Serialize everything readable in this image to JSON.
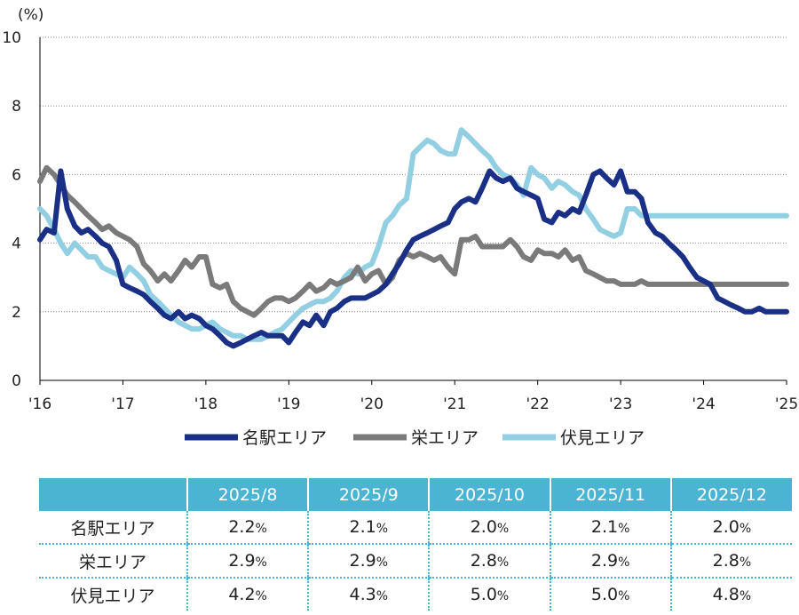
{
  "chart_data": {
    "type": "line",
    "y_unit_label": "(%)",
    "ylim": [
      0,
      10
    ],
    "yticks": [
      "0",
      "2",
      "4",
      "6",
      "8",
      "10"
    ],
    "grid": true,
    "x_tick_labels": [
      "'16",
      "'17",
      "'18",
      "'19",
      "'20",
      "'21",
      "'22",
      "'23",
      "'24",
      "'25"
    ],
    "xlim": [
      2016.0,
      2025.0
    ],
    "legend_position": "bottom",
    "series": [
      {
        "name": "名駅エリア",
        "color": "#1a2f86",
        "x": [
          2016.0,
          2016.08,
          2016.17,
          2016.25,
          2016.33,
          2016.42,
          2016.5,
          2016.58,
          2016.67,
          2016.75,
          2016.83,
          2016.92,
          2017.0,
          2017.08,
          2017.17,
          2017.25,
          2017.33,
          2017.42,
          2017.5,
          2017.58,
          2017.67,
          2017.75,
          2017.83,
          2017.92,
          2018.0,
          2018.08,
          2018.17,
          2018.25,
          2018.33,
          2018.42,
          2018.5,
          2018.58,
          2018.67,
          2018.75,
          2018.83,
          2018.92,
          2019.0,
          2019.08,
          2019.17,
          2019.25,
          2019.33,
          2019.42,
          2019.5,
          2019.58,
          2019.67,
          2019.75,
          2019.83,
          2019.92,
          2020.0,
          2020.08,
          2020.17,
          2020.25,
          2020.33,
          2020.42,
          2020.5,
          2020.58,
          2020.67,
          2020.75,
          2020.83,
          2020.92,
          2021.0,
          2021.08,
          2021.17,
          2021.25,
          2021.33,
          2021.42,
          2021.5,
          2021.58,
          2021.67,
          2021.75,
          2021.83,
          2021.92,
          2022.0,
          2022.08,
          2022.17,
          2022.25,
          2022.33,
          2022.42,
          2022.5,
          2022.58,
          2022.67,
          2022.75,
          2022.83,
          2022.92,
          2023.0,
          2023.08,
          2023.17,
          2023.25,
          2023.33,
          2023.42,
          2023.5,
          2023.58,
          2023.67,
          2023.75,
          2023.83,
          2023.92,
          2024.0,
          2024.08,
          2024.17,
          2024.25,
          2024.33,
          2024.42,
          2024.5,
          2024.58,
          2024.67,
          2024.75,
          2024.83,
          2024.92,
          2025.0
        ],
        "values": [
          4.1,
          4.4,
          4.3,
          6.1,
          5.0,
          4.5,
          4.3,
          4.4,
          4.2,
          4.0,
          3.9,
          3.5,
          2.8,
          2.7,
          2.6,
          2.5,
          2.3,
          2.1,
          1.9,
          1.8,
          2.0,
          1.8,
          1.9,
          1.8,
          1.6,
          1.5,
          1.3,
          1.1,
          1.0,
          1.1,
          1.2,
          1.3,
          1.4,
          1.3,
          1.3,
          1.3,
          1.1,
          1.4,
          1.7,
          1.6,
          1.9,
          1.6,
          2.0,
          2.1,
          2.3,
          2.4,
          2.4,
          2.4,
          2.5,
          2.6,
          2.8,
          3.1,
          3.4,
          3.8,
          4.1,
          4.2,
          4.3,
          4.4,
          4.5,
          4.6,
          5.0,
          5.2,
          5.3,
          5.2,
          5.6,
          6.1,
          5.9,
          5.8,
          5.9,
          5.6,
          5.5,
          5.4,
          5.3,
          4.7,
          4.6,
          4.9,
          4.8,
          5.0,
          4.9,
          5.4,
          6.0,
          6.1,
          5.9,
          5.7,
          6.1,
          5.5,
          5.5,
          5.3,
          4.6,
          4.3,
          4.2,
          4.0,
          3.8,
          3.6,
          3.3,
          3.0,
          2.9,
          2.8,
          2.4,
          2.3,
          2.2,
          2.1,
          2.0,
          2.0,
          2.1,
          2.0,
          2.0,
          2.0,
          2.0
        ]
      },
      {
        "name": "栄エリア",
        "color": "#7a7a7a",
        "x": [
          2016.0,
          2016.08,
          2016.17,
          2016.25,
          2016.33,
          2016.42,
          2016.5,
          2016.58,
          2016.67,
          2016.75,
          2016.83,
          2016.92,
          2017.0,
          2017.08,
          2017.17,
          2017.25,
          2017.33,
          2017.42,
          2017.5,
          2017.58,
          2017.67,
          2017.75,
          2017.83,
          2017.92,
          2018.0,
          2018.08,
          2018.17,
          2018.25,
          2018.33,
          2018.42,
          2018.5,
          2018.58,
          2018.67,
          2018.75,
          2018.83,
          2018.92,
          2019.0,
          2019.08,
          2019.17,
          2019.25,
          2019.33,
          2019.42,
          2019.5,
          2019.58,
          2019.67,
          2019.75,
          2019.83,
          2019.92,
          2020.0,
          2020.08,
          2020.17,
          2020.25,
          2020.33,
          2020.42,
          2020.5,
          2020.58,
          2020.67,
          2020.75,
          2020.83,
          2020.92,
          2021.0,
          2021.08,
          2021.17,
          2021.25,
          2021.33,
          2021.42,
          2021.5,
          2021.58,
          2021.67,
          2021.75,
          2021.83,
          2021.92,
          2022.0,
          2022.08,
          2022.17,
          2022.25,
          2022.33,
          2022.42,
          2022.5,
          2022.58,
          2022.67,
          2022.75,
          2022.83,
          2022.92,
          2023.0,
          2023.08,
          2023.17,
          2023.25,
          2023.33,
          2023.42,
          2023.5,
          2023.58,
          2023.67,
          2023.75,
          2023.83,
          2023.92,
          2024.0,
          2024.08,
          2024.17,
          2024.25,
          2024.33,
          2024.42,
          2024.5,
          2024.58,
          2024.67,
          2024.75,
          2024.83,
          2024.92,
          2025.0
        ],
        "values": [
          5.8,
          6.2,
          6.0,
          5.7,
          5.4,
          5.2,
          5.0,
          4.8,
          4.6,
          4.4,
          4.5,
          4.3,
          4.2,
          4.1,
          3.9,
          3.4,
          3.2,
          2.9,
          3.1,
          2.9,
          3.2,
          3.5,
          3.3,
          3.6,
          3.6,
          2.8,
          2.7,
          2.8,
          2.3,
          2.1,
          2.0,
          1.9,
          2.1,
          2.3,
          2.4,
          2.4,
          2.3,
          2.4,
          2.6,
          2.8,
          2.6,
          2.7,
          2.9,
          2.8,
          2.9,
          3.0,
          3.3,
          2.9,
          3.1,
          3.2,
          2.8,
          3.0,
          3.5,
          3.7,
          3.6,
          3.7,
          3.6,
          3.5,
          3.6,
          3.3,
          3.1,
          4.1,
          4.1,
          4.2,
          3.9,
          3.9,
          3.9,
          3.9,
          4.1,
          3.9,
          3.6,
          3.5,
          3.8,
          3.7,
          3.7,
          3.6,
          3.8,
          3.5,
          3.6,
          3.2,
          3.1,
          3.0,
          2.9,
          2.9,
          2.8,
          2.8,
          2.8,
          2.9,
          2.8,
          2.8,
          2.8,
          2.8,
          2.8,
          2.8,
          2.8,
          2.8,
          2.8,
          2.8,
          2.8,
          2.8,
          2.8,
          2.8,
          2.8,
          2.8,
          2.8,
          2.8,
          2.8,
          2.8,
          2.8
        ]
      },
      {
        "name": "伏見エリア",
        "color": "#92cfe3",
        "x": [
          2016.0,
          2016.08,
          2016.17,
          2016.25,
          2016.33,
          2016.42,
          2016.5,
          2016.58,
          2016.67,
          2016.75,
          2016.83,
          2016.92,
          2017.0,
          2017.08,
          2017.17,
          2017.25,
          2017.33,
          2017.42,
          2017.5,
          2017.58,
          2017.67,
          2017.75,
          2017.83,
          2017.92,
          2018.0,
          2018.08,
          2018.17,
          2018.25,
          2018.33,
          2018.42,
          2018.5,
          2018.58,
          2018.67,
          2018.75,
          2018.83,
          2018.92,
          2019.0,
          2019.08,
          2019.17,
          2019.25,
          2019.33,
          2019.42,
          2019.5,
          2019.58,
          2019.67,
          2019.75,
          2019.83,
          2019.92,
          2020.0,
          2020.08,
          2020.17,
          2020.25,
          2020.33,
          2020.42,
          2020.5,
          2020.58,
          2020.67,
          2020.75,
          2020.83,
          2020.92,
          2021.0,
          2021.08,
          2021.17,
          2021.25,
          2021.33,
          2021.42,
          2021.5,
          2021.58,
          2021.67,
          2021.75,
          2021.83,
          2021.92,
          2022.0,
          2022.08,
          2022.17,
          2022.25,
          2022.33,
          2022.42,
          2022.5,
          2022.58,
          2022.67,
          2022.75,
          2022.83,
          2022.92,
          2023.0,
          2023.08,
          2023.17,
          2023.25,
          2023.33,
          2023.42,
          2023.5,
          2023.58,
          2023.67,
          2023.75,
          2023.83,
          2023.92,
          2024.0,
          2024.08,
          2024.17,
          2024.25,
          2024.33,
          2024.42,
          2024.5,
          2024.58,
          2024.67,
          2024.75,
          2024.83,
          2024.92,
          2025.0
        ],
        "values": [
          5.0,
          4.8,
          4.4,
          4.0,
          3.7,
          4.0,
          3.8,
          3.6,
          3.6,
          3.3,
          3.2,
          3.1,
          3.0,
          3.3,
          3.1,
          2.9,
          2.5,
          2.3,
          2.1,
          1.9,
          1.7,
          1.6,
          1.5,
          1.5,
          1.6,
          1.7,
          1.5,
          1.4,
          1.3,
          1.3,
          1.2,
          1.2,
          1.2,
          1.3,
          1.4,
          1.5,
          1.7,
          1.9,
          2.1,
          2.2,
          2.3,
          2.3,
          2.4,
          2.6,
          3.0,
          3.2,
          3.1,
          3.3,
          3.4,
          3.9,
          4.6,
          4.8,
          5.1,
          5.3,
          6.6,
          6.8,
          7.0,
          6.9,
          6.7,
          6.6,
          6.6,
          7.3,
          7.1,
          6.9,
          6.7,
          6.5,
          6.2,
          6.0,
          5.9,
          5.7,
          5.4,
          6.2,
          6.0,
          5.9,
          5.6,
          5.8,
          5.7,
          5.5,
          5.4,
          5.0,
          4.7,
          4.4,
          4.3,
          4.2,
          4.3,
          5.0,
          5.0,
          4.8,
          4.8,
          4.8,
          4.8,
          4.8,
          4.8,
          4.8,
          4.8,
          4.8,
          4.8,
          4.8,
          4.8,
          4.8,
          4.8,
          4.8,
          4.8,
          4.8,
          4.8,
          4.8,
          4.8,
          4.8,
          4.8
        ]
      }
    ]
  },
  "table": {
    "header": [
      "2025/8",
      "2025/9",
      "2025/10",
      "2025/11",
      "2025/12"
    ],
    "rows": [
      {
        "label": "名駅エリア",
        "values": [
          "2.2",
          "2.1",
          "2.0",
          "2.1",
          "2.0"
        ]
      },
      {
        "label": "栄エリア",
        "values": [
          "2.9",
          "2.9",
          "2.8",
          "2.9",
          "2.8"
        ]
      },
      {
        "label": "伏見エリア",
        "values": [
          "4.2",
          "4.3",
          "5.0",
          "5.0",
          "4.8"
        ]
      }
    ],
    "unit": "%"
  }
}
